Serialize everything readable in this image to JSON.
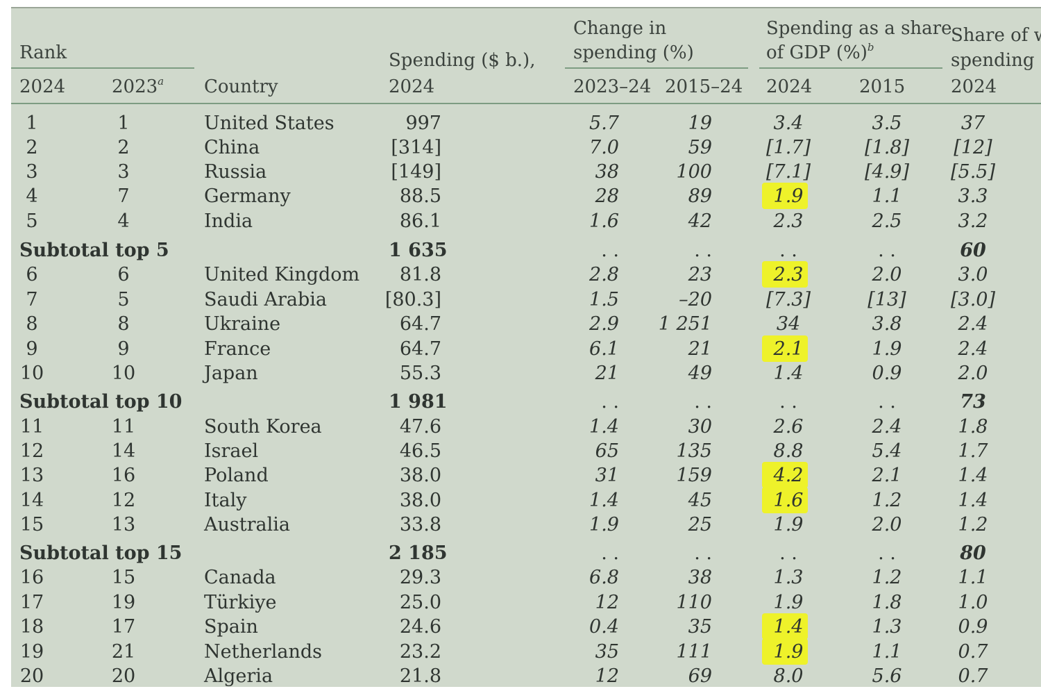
{
  "header": {
    "rank": "Rank",
    "rank_2024": "2024",
    "rank_2023": "2023",
    "rank_2023_note": "a",
    "country": "Country",
    "spending_line1": "Spending ($ b.),",
    "spending_line2": "2024",
    "change_line1": "Change in",
    "change_line2": "spending (%)",
    "change_2023_24": "2023–24",
    "change_2015_24": "2015–24",
    "gdp_line1": "Spending as a share",
    "gdp_line2": "of GDP (%)",
    "gdp_note": "b",
    "gdp_2024": "2024",
    "gdp_2015": "2015",
    "world_line1": "Share of w",
    "world_line2": "spending (",
    "world_2024": "2024"
  },
  "rows": [
    {
      "type": "country",
      "rank2024": "1",
      "rank2023": "1",
      "country": "United States",
      "spending": "997",
      "ch1": "5.7",
      "ch2": "19",
      "gdp24": "3.4",
      "gdp15": "3.5",
      "share": "37"
    },
    {
      "type": "country",
      "rank2024": "2",
      "rank2023": "2",
      "country": "China",
      "spending": "[314]",
      "ch1": "7.0",
      "ch2": "59",
      "gdp24": "[1.7]",
      "gdp15": "[1.8]",
      "share": "[12]"
    },
    {
      "type": "country",
      "rank2024": "3",
      "rank2023": "3",
      "country": "Russia",
      "spending": "[149]",
      "ch1": "38",
      "ch2": "100",
      "gdp24": "[7.1]",
      "gdp15": "[4.9]",
      "share": "[5.5]"
    },
    {
      "type": "country",
      "rank2024": "4",
      "rank2023": "7",
      "country": "Germany",
      "spending": "88.5",
      "ch1": "28",
      "ch2": "89",
      "gdp24": "1.9",
      "gdp15": "1.1",
      "share": "3.3",
      "highlight": true
    },
    {
      "type": "country",
      "rank2024": "5",
      "rank2023": "4",
      "country": "India",
      "spending": "86.1",
      "ch1": "1.6",
      "ch2": "42",
      "gdp24": "2.3",
      "gdp15": "2.5",
      "share": "3.2"
    },
    {
      "type": "subtotal",
      "label": "Subtotal top 5",
      "spending": "1 635",
      "ch1": ". .",
      "ch2": ". .",
      "gdp24": ". .",
      "gdp15": ". .",
      "share": "60"
    },
    {
      "type": "country",
      "rank2024": "6",
      "rank2023": "6",
      "country": "United Kingdom",
      "spending": "81.8",
      "ch1": "2.8",
      "ch2": "23",
      "gdp24": "2.3",
      "gdp15": "2.0",
      "share": "3.0",
      "highlight": true
    },
    {
      "type": "country",
      "rank2024": "7",
      "rank2023": "5",
      "country": "Saudi Arabia",
      "spending": "[80.3]",
      "ch1": "1.5",
      "ch2": "–20",
      "gdp24": "[7.3]",
      "gdp15": "[13]",
      "share": "[3.0]"
    },
    {
      "type": "country",
      "rank2024": "8",
      "rank2023": "8",
      "country": "Ukraine",
      "spending": "64.7",
      "ch1": "2.9",
      "ch2": "1 251",
      "gdp24": "34",
      "gdp15": "3.8",
      "share": "2.4"
    },
    {
      "type": "country",
      "rank2024": "9",
      "rank2023": "9",
      "country": "France",
      "spending": "64.7",
      "ch1": "6.1",
      "ch2": "21",
      "gdp24": "2.1",
      "gdp15": "1.9",
      "share": "2.4",
      "highlight": true
    },
    {
      "type": "country",
      "rank2024": "10",
      "rank2023": "10",
      "country": "Japan",
      "spending": "55.3",
      "ch1": "21",
      "ch2": "49",
      "gdp24": "1.4",
      "gdp15": "0.9",
      "share": "2.0"
    },
    {
      "type": "subtotal",
      "label": "Subtotal top 10",
      "spending": "1 981",
      "ch1": ". .",
      "ch2": ". .",
      "gdp24": ". .",
      "gdp15": ". .",
      "share": "73"
    },
    {
      "type": "country",
      "rank2024": "11",
      "rank2023": "11",
      "country": "South Korea",
      "spending": "47.6",
      "ch1": "1.4",
      "ch2": "30",
      "gdp24": "2.6",
      "gdp15": "2.4",
      "share": "1.8"
    },
    {
      "type": "country",
      "rank2024": "12",
      "rank2023": "14",
      "country": "Israel",
      "spending": "46.5",
      "ch1": "65",
      "ch2": "135",
      "gdp24": "8.8",
      "gdp15": "5.4",
      "share": "1.7"
    },
    {
      "type": "country",
      "rank2024": "13",
      "rank2023": "16",
      "country": "Poland",
      "spending": "38.0",
      "ch1": "31",
      "ch2": "159",
      "gdp24": "4.2",
      "gdp15": "2.1",
      "share": "1.4",
      "highlight": true
    },
    {
      "type": "country",
      "rank2024": "14",
      "rank2023": "12",
      "country": "Italy",
      "spending": "38.0",
      "ch1": "1.4",
      "ch2": "45",
      "gdp24": "1.6",
      "gdp15": "1.2",
      "share": "1.4",
      "highlight": true
    },
    {
      "type": "country",
      "rank2024": "15",
      "rank2023": "13",
      "country": "Australia",
      "spending": "33.8",
      "ch1": "1.9",
      "ch2": "25",
      "gdp24": "1.9",
      "gdp15": "2.0",
      "share": "1.2"
    },
    {
      "type": "subtotal",
      "label": "Subtotal top 15",
      "spending": "2 185",
      "ch1": ". .",
      "ch2": ". .",
      "gdp24": ". .",
      "gdp15": ". .",
      "share": "80"
    },
    {
      "type": "country",
      "rank2024": "16",
      "rank2023": "15",
      "country": "Canada",
      "spending": "29.3",
      "ch1": "6.8",
      "ch2": "38",
      "gdp24": "1.3",
      "gdp15": "1.2",
      "share": "1.1"
    },
    {
      "type": "country",
      "rank2024": "17",
      "rank2023": "19",
      "country": "Türkiye",
      "spending": "25.0",
      "ch1": "12",
      "ch2": "110",
      "gdp24": "1.9",
      "gdp15": "1.8",
      "share": "1.0"
    },
    {
      "type": "country",
      "rank2024": "18",
      "rank2023": "17",
      "country": "Spain",
      "spending": "24.6",
      "ch1": "0.4",
      "ch2": "35",
      "gdp24": "1.4",
      "gdp15": "1.3",
      "share": "0.9",
      "highlight": true
    },
    {
      "type": "country",
      "rank2024": "19",
      "rank2023": "21",
      "country": "Netherlands",
      "spending": "23.2",
      "ch1": "35",
      "ch2": "111",
      "gdp24": "1.9",
      "gdp15": "1.1",
      "share": "0.7",
      "highlight": true
    },
    {
      "type": "country",
      "rank2024": "20",
      "rank2023": "20",
      "country": "Algeria",
      "spending": "21.8",
      "ch1": "12",
      "ch2": "69",
      "gdp24": "8.0",
      "gdp15": "5.6",
      "share": "0.7"
    }
  ],
  "colors": {
    "background": "#d0d9cc",
    "rule": "#7d9c82",
    "highlight": "#eef22a",
    "text": "#2f3531"
  }
}
